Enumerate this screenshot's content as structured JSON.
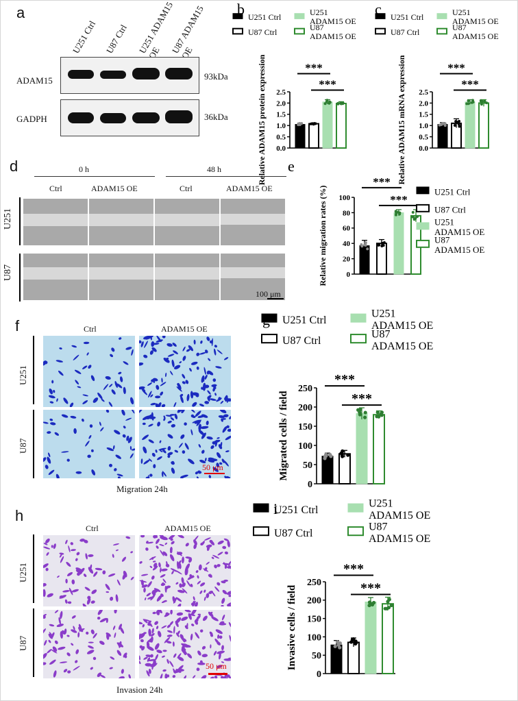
{
  "panels": {
    "a": {
      "letter": "a",
      "lanes": [
        "U251 Ctrl",
        "U87 Ctrl",
        "U251 ADAM15 OE",
        "U87 ADAM15 OE"
      ],
      "rows": [
        {
          "label": "ADAM15",
          "kda": "93kDa"
        },
        {
          "label": "GADPH",
          "kda": "36kDa"
        }
      ]
    },
    "d": {
      "letter": "d",
      "times": [
        "0 h",
        "48 h"
      ],
      "conds": [
        "Ctrl",
        "ADAM15 OE",
        "Ctrl",
        "ADAM15 OE"
      ],
      "rows": [
        "U251",
        "U87"
      ],
      "scale": "100 μm"
    },
    "f": {
      "letter": "f",
      "conds": [
        "Ctrl",
        "ADAM15 OE"
      ],
      "rows": [
        "U251",
        "U87"
      ],
      "caption": "Migration 24h",
      "scale": "50 μm"
    },
    "h": {
      "letter": "h",
      "conds": [
        "Ctrl",
        "ADAM15 OE"
      ],
      "rows": [
        "U251",
        "U87"
      ],
      "caption": "Invasion 24h",
      "scale": "50 μm"
    }
  },
  "colors": {
    "black": "#000000",
    "white": "#ffffff",
    "lightgreen": "#a8dfb0",
    "darkgreen": "#2e8b2e",
    "dotgrey": "#8c8c8c",
    "dotgreen": "#2e7d32",
    "scalered": "#e00000"
  },
  "chart_data": [
    {
      "letter": "b",
      "type": "bar",
      "ylabel": "Relative ADAM15 protein expression",
      "ylim": [
        0,
        2.5
      ],
      "ticks": [
        "0.0",
        "0.5",
        "1.0",
        "1.5",
        "2.0",
        "2.5"
      ],
      "categories": [
        "U251 Ctrl",
        "U87 Ctrl",
        "U251 ADAM15 OE",
        "U87 ADAM15 OE"
      ],
      "values": [
        1.05,
        1.08,
        2.05,
        1.98
      ],
      "errors": [
        0.06,
        0.04,
        0.1,
        0.08
      ],
      "sig": [
        {
          "label": "***"
        },
        {
          "label": "***"
        }
      ],
      "legend": [
        "U251 Ctrl",
        "U87 Ctrl",
        "U251 ADAM15 OE",
        "U87 ADAM15 OE"
      ]
    },
    {
      "letter": "c",
      "type": "bar",
      "ylabel": "Relative ADAM15 mRNA expression",
      "ylim": [
        0,
        2.5
      ],
      "ticks": [
        "0.0",
        "0.5",
        "1.0",
        "1.5",
        "2.0",
        "2.5"
      ],
      "categories": [
        "U251 Ctrl",
        "U87 Ctrl",
        "U251 ADAM15 OE",
        "U87 ADAM15 OE"
      ],
      "values": [
        1.05,
        1.1,
        2.05,
        2.0
      ],
      "errors": [
        0.08,
        0.2,
        0.1,
        0.15
      ],
      "sig": [
        {
          "label": "***"
        },
        {
          "label": "***"
        }
      ],
      "legend": [
        "U251 Ctrl",
        "U87 Ctrl",
        "U251 ADAM15 OE",
        "U87 ADAM15 OE"
      ]
    },
    {
      "letter": "e",
      "type": "bar",
      "ylabel": "Relative migration rates (%)",
      "ylim": [
        0,
        100
      ],
      "ticks": [
        "0",
        "20",
        "40",
        "60",
        "80",
        "100"
      ],
      "categories": [
        "U251 Ctrl",
        "U87 Ctrl",
        "U251 ADAM15 OE",
        "U87 ADAM15 OE"
      ],
      "values": [
        37,
        40,
        80,
        76
      ],
      "errors": [
        7,
        5,
        4,
        8
      ],
      "sig": [
        {
          "label": "***"
        },
        {
          "label": "***"
        }
      ],
      "legend": [
        "U251 Ctrl",
        "U87 Ctrl",
        "U251 ADAM15 OE",
        "U87 ADAM15 OE"
      ]
    },
    {
      "letter": "g",
      "type": "bar",
      "ylabel": "Migrated cells / field",
      "ylim": [
        0,
        250
      ],
      "ticks": [
        "0",
        "50",
        "100",
        "150",
        "200",
        "250"
      ],
      "categories": [
        "U251 Ctrl",
        "U87 Ctrl",
        "U251 ADAM15 OE",
        "U87 ADAM15 OE"
      ],
      "values": [
        72,
        78,
        183,
        180
      ],
      "errors": [
        8,
        9,
        15,
        10
      ],
      "sig": [
        {
          "label": "***"
        },
        {
          "label": "***"
        }
      ],
      "legend": [
        "U251 Ctrl",
        "U87 Ctrl",
        "U251 ADAM15 OE",
        "U87 ADAM15 OE"
      ]
    },
    {
      "letter": "i",
      "type": "bar",
      "ylabel": "Invasive cells / field",
      "ylim": [
        0,
        250
      ],
      "ticks": [
        "0",
        "50",
        "100",
        "150",
        "200",
        "250"
      ],
      "categories": [
        "U251 Ctrl",
        "U87 Ctrl",
        "U251 ADAM15 OE",
        "U87 ADAM15 OE"
      ],
      "values": [
        78,
        85,
        195,
        190
      ],
      "errors": [
        12,
        12,
        12,
        18
      ],
      "sig": [
        {
          "label": "***"
        },
        {
          "label": "***"
        }
      ],
      "legend": [
        "U251 Ctrl",
        "U87 Ctrl",
        "U251 ADAM15 OE",
        "U87 ADAM15 OE"
      ]
    }
  ]
}
